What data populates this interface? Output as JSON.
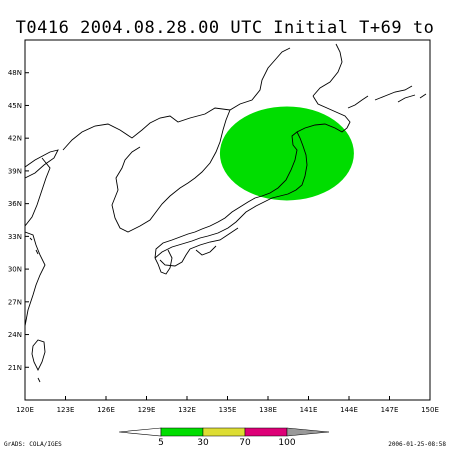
{
  "title": "T0416 2004.08.28.00 UTC Initial T+69 to 72",
  "map": {
    "lon_labels": [
      "120E",
      "123E",
      "126E",
      "129E",
      "132E",
      "135E",
      "138E",
      "141E",
      "144E",
      "147E",
      "150E"
    ],
    "lat_labels": [
      "21N",
      "24N",
      "27N",
      "30N",
      "33N",
      "36N",
      "39N",
      "42N",
      "45N",
      "48N"
    ],
    "region": {
      "lon": [
        120,
        150
      ],
      "lat": [
        18,
        51
      ]
    }
  },
  "probability_area": {
    "center_lon": 139.4,
    "center_lat": 40.6,
    "color": "#00dd00"
  },
  "colorbar": {
    "labels": [
      "5",
      "30",
      "70",
      "100"
    ],
    "colors": [
      "#00dd00",
      "#dddd33",
      "#dd0077",
      "#999999"
    ]
  },
  "footer": {
    "left": "GrADS: COLA/IGES",
    "right": "2006-01-25-08:58"
  }
}
